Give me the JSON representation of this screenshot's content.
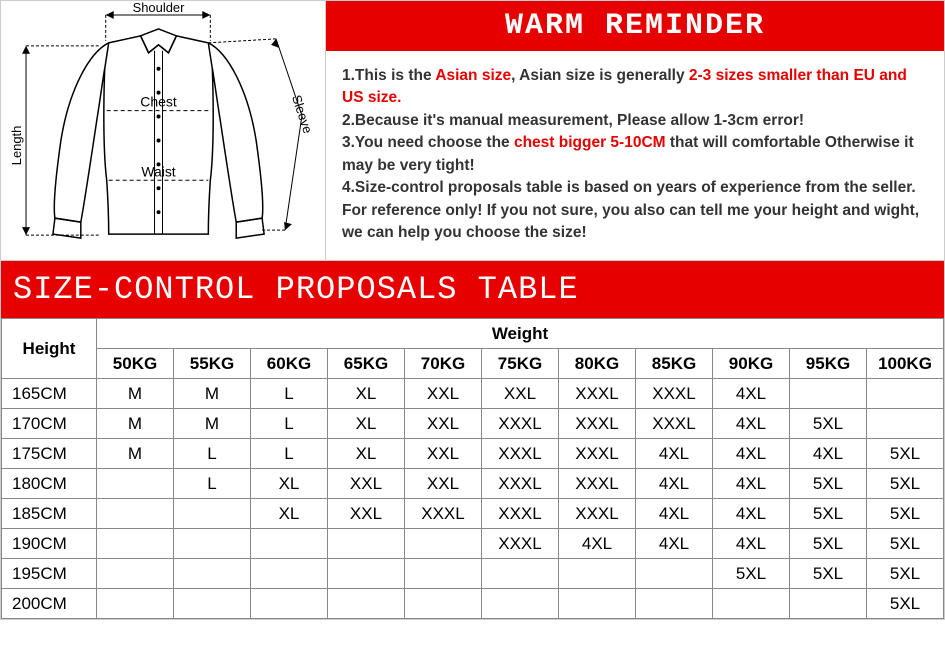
{
  "reminder": {
    "header": "WARM REMINDER",
    "line1_a": "1.This is the ",
    "line1_b": "Asian size",
    "line1_c": ", Asian size is generally ",
    "line1_d": "2-3 sizes smaller than EU and US size.",
    "line2": "2.Because it's manual measurement, Please allow 1-3cm error!",
    "line3_a": "3.You need choose the ",
    "line3_b": "chest bigger 5-10CM",
    "line3_c": " that will comfortable Otherwise it may be very tight!",
    "line4": "4.Size-control proposals table is based on years of experience from the seller.  For reference only! If you not sure, you also can tell me your height and wight, we can help you choose the size!"
  },
  "diagram_labels": {
    "shoulder": "Shoulder",
    "length": "Length",
    "chest": "Chest",
    "waist": "Waist",
    "sleeve": "Sleeve"
  },
  "table": {
    "title": "SIZE-CONTROL PROPOSALS TABLE",
    "height_label": "Height",
    "weight_label": "Weight",
    "weights": [
      "50KG",
      "55KG",
      "60KG",
      "65KG",
      "70KG",
      "75KG",
      "80KG",
      "85KG",
      "90KG",
      "95KG",
      "100KG"
    ],
    "rows": [
      {
        "h": "165CM",
        "c": [
          "M",
          "M",
          "L",
          "XL",
          "XXL",
          "XXL",
          "XXXL",
          "XXXL",
          "4XL",
          "",
          ""
        ]
      },
      {
        "h": "170CM",
        "c": [
          "M",
          "M",
          "L",
          "XL",
          "XXL",
          "XXXL",
          "XXXL",
          "XXXL",
          "4XL",
          "5XL",
          ""
        ]
      },
      {
        "h": "175CM",
        "c": [
          "M",
          "L",
          "L",
          "XL",
          "XXL",
          "XXXL",
          "XXXL",
          "4XL",
          "4XL",
          "4XL",
          "5XL"
        ]
      },
      {
        "h": "180CM",
        "c": [
          "",
          "L",
          "XL",
          "XXL",
          "XXL",
          "XXXL",
          "XXXL",
          "4XL",
          "4XL",
          "5XL",
          "5XL"
        ]
      },
      {
        "h": "185CM",
        "c": [
          "",
          "",
          "XL",
          "XXL",
          "XXXL",
          "XXXL",
          "XXXL",
          "4XL",
          "4XL",
          "5XL",
          "5XL"
        ]
      },
      {
        "h": "190CM",
        "c": [
          "",
          "",
          "",
          "",
          "",
          "XXXL",
          "4XL",
          "4XL",
          "4XL",
          "5XL",
          "5XL"
        ]
      },
      {
        "h": "195CM",
        "c": [
          "",
          "",
          "",
          "",
          "",
          "",
          "",
          "",
          "5XL",
          "5XL",
          "5XL"
        ]
      },
      {
        "h": "200CM",
        "c": [
          "",
          "",
          "",
          "",
          "",
          "",
          "",
          "",
          "",
          "",
          "5XL"
        ]
      }
    ]
  },
  "colors": {
    "red": "#e60000",
    "text": "#333333",
    "border": "#888888",
    "bg": "#ffffff"
  }
}
